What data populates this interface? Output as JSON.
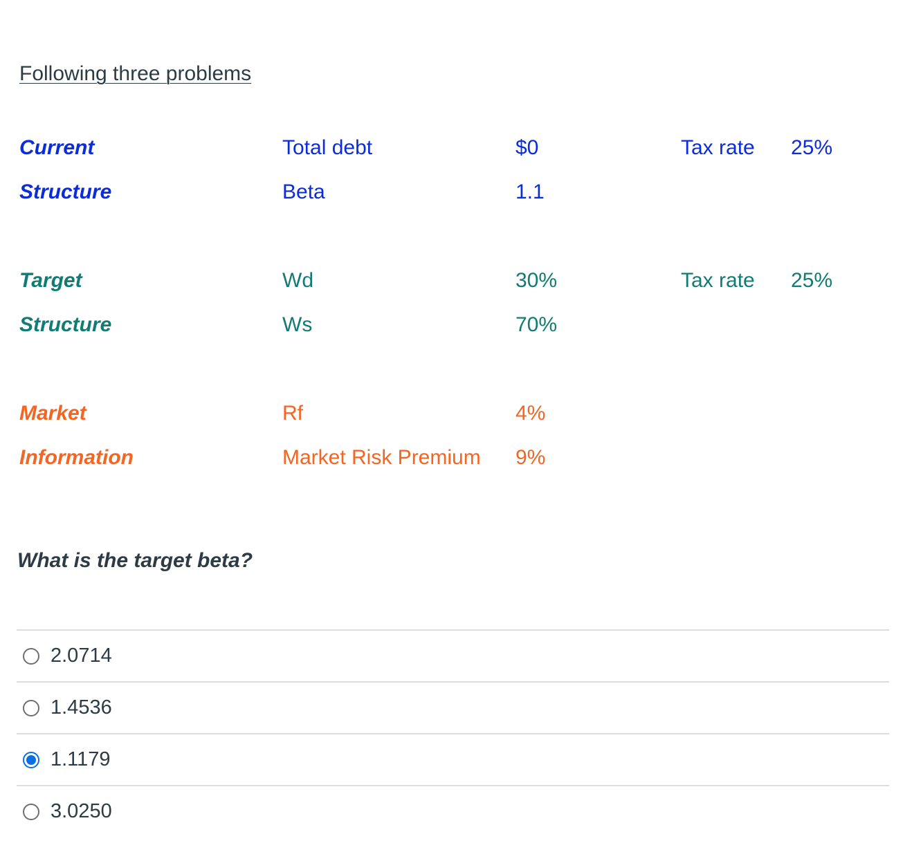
{
  "heading": "Following three problems",
  "current": {
    "label1": "Current",
    "label2": "Structure",
    "row1": {
      "name": "Total debt",
      "value": "$0",
      "tax_label": "Tax rate",
      "tax_value": "25%"
    },
    "row2": {
      "name": "Beta",
      "value": "1.1"
    }
  },
  "target": {
    "label1": "Target",
    "label2": "Structure",
    "row1": {
      "name": "Wd",
      "value": "30%",
      "tax_label": "Tax rate",
      "tax_value": "25%"
    },
    "row2": {
      "name": "Ws",
      "value": "70%"
    }
  },
  "market": {
    "label1": "Market",
    "label2": "Information",
    "row1": {
      "name": "Rf",
      "value": "4%"
    },
    "row2": {
      "name": "Market Risk Premium",
      "value": "9%"
    }
  },
  "question": "What is the target beta?",
  "answers": [
    {
      "text": "2.0714",
      "selected": false
    },
    {
      "text": "1.4536",
      "selected": false
    },
    {
      "text": "1.1179",
      "selected": true
    },
    {
      "text": "3.0250",
      "selected": false
    }
  ],
  "colors": {
    "current": "#0b2cd8",
    "target": "#127b74",
    "market": "#f26522",
    "radio_selected": "#0770e3"
  }
}
